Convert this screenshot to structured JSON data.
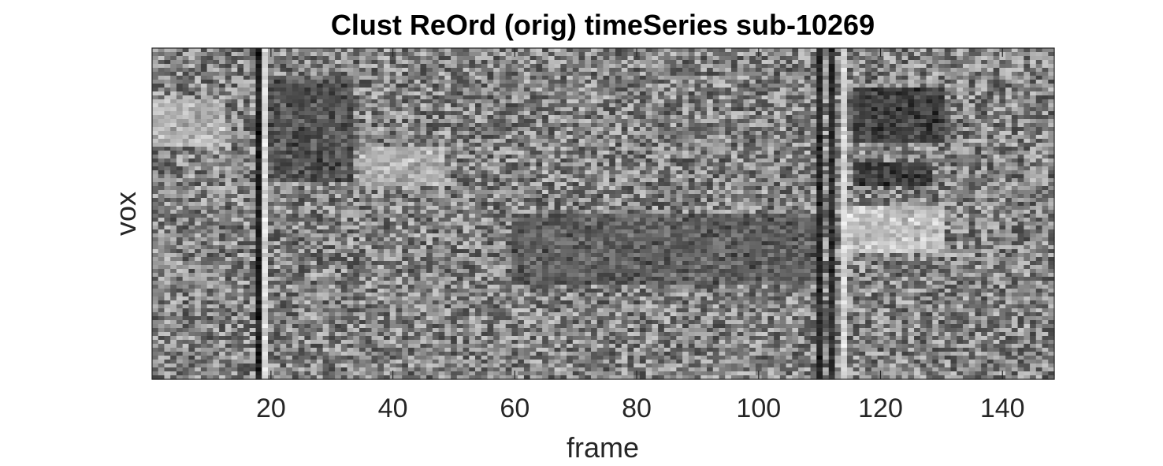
{
  "chart_data": {
    "type": "heatmap",
    "title": "Clust ReOrd (orig) timeSeries sub-10269",
    "xlabel": "frame",
    "ylabel": "vox",
    "colormap": "gray",
    "xlim": [
      0.5,
      148.5
    ],
    "x_ticks": [
      20,
      40,
      60,
      80,
      100,
      120,
      140
    ],
    "x_tick_labels": [
      "20",
      "40",
      "60",
      "80",
      "100",
      "120",
      "140"
    ],
    "y_ticks": [],
    "n_frames": 148,
    "n_vox_rows": 84,
    "frame_features": [
      {
        "frame": 18,
        "intensity": 0.02,
        "description": "dark vertical stripe"
      },
      {
        "frame": 19,
        "intensity": 0.95,
        "description": "bright vertical stripe"
      },
      {
        "frame": 110,
        "intensity": 0.08,
        "description": "dark vertical stripe"
      },
      {
        "frame": 112,
        "intensity": 0.1,
        "description": "dark vertical stripe"
      },
      {
        "frame": 114,
        "intensity": 0.92,
        "description": "bright vertical stripe"
      }
    ],
    "block_features": [
      {
        "frames": [
          1,
          12
        ],
        "vox_fraction": [
          0.15,
          0.3
        ],
        "intensity": 0.8
      },
      {
        "frames": [
          20,
          33
        ],
        "vox_fraction": [
          0.1,
          0.4
        ],
        "intensity": 0.22
      },
      {
        "frames": [
          35,
          48
        ],
        "vox_fraction": [
          0.3,
          0.42
        ],
        "intensity": 0.78
      },
      {
        "frames": [
          60,
          110
        ],
        "vox_fraction": [
          0.5,
          0.72
        ],
        "intensity": 0.3
      },
      {
        "frames": [
          116,
          130
        ],
        "vox_fraction": [
          0.12,
          0.28
        ],
        "intensity": 0.12
      },
      {
        "frames": [
          116,
          128
        ],
        "vox_fraction": [
          0.35,
          0.42
        ],
        "intensity": 0.1
      },
      {
        "frames": [
          115,
          130
        ],
        "vox_fraction": [
          0.48,
          0.62
        ],
        "intensity": 0.9
      }
    ]
  }
}
